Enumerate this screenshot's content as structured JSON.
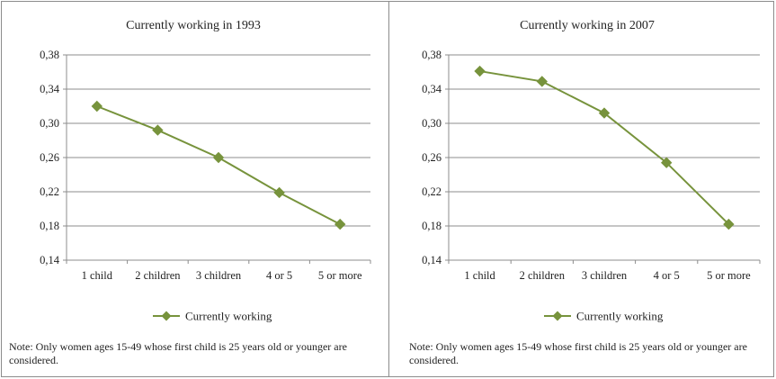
{
  "colors": {
    "series": "#77933c",
    "grid": "#8c8c8c",
    "border": "#8c8c8c"
  },
  "chart_data": [
    {
      "type": "line",
      "title": "Currently working in 1993",
      "categories": [
        "1 child",
        "2 children",
        "3 children",
        "4 or 5",
        "5 or more"
      ],
      "series": [
        {
          "name": "Currently working",
          "values": [
            0.32,
            0.292,
            0.26,
            0.219,
            0.182
          ]
        }
      ],
      "yticks": [
        "0,38",
        "0,34",
        "0,30",
        "0,26",
        "0,22",
        "0,18",
        "0,14"
      ],
      "ylim": [
        0.14,
        0.38
      ],
      "grid": true,
      "legend": "bottom",
      "note": "Note: Only women ages 15-49 whose first child is 25 years old or younger are considered."
    },
    {
      "type": "line",
      "title": "Currently working in 2007",
      "categories": [
        "1 child",
        "2 children",
        "3 children",
        "4 or 5",
        "5 or more"
      ],
      "series": [
        {
          "name": "Currently working",
          "values": [
            0.361,
            0.349,
            0.312,
            0.254,
            0.182
          ]
        }
      ],
      "yticks": [
        "0,38",
        "0,34",
        "0,30",
        "0,26",
        "0,22",
        "0,18",
        "0,14"
      ],
      "ylim": [
        0.14,
        0.38
      ],
      "grid": true,
      "legend": "bottom",
      "note": "Note: Only women ages 15-49 whose first child is 25 years old or younger are considered."
    }
  ]
}
